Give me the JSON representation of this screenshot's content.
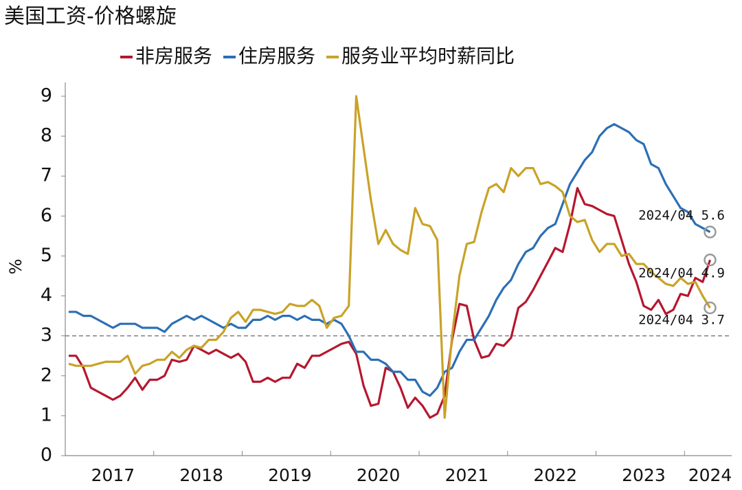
{
  "chart_data": {
    "type": "line",
    "title": "美国工资-价格螺旋",
    "ylabel": "%",
    "categories": [
      null,
      null,
      null,
      null,
      null,
      null,
      "2017",
      null,
      null,
      null,
      null,
      null,
      null,
      null,
      null,
      null,
      null,
      null,
      "2018",
      null,
      null,
      null,
      null,
      null,
      null,
      null,
      null,
      null,
      null,
      null,
      "2019",
      null,
      null,
      null,
      null,
      null,
      null,
      null,
      null,
      null,
      null,
      null,
      "2020",
      null,
      null,
      null,
      null,
      null,
      null,
      null,
      null,
      null,
      null,
      null,
      "2021",
      null,
      null,
      null,
      null,
      null,
      null,
      null,
      null,
      null,
      null,
      null,
      "2022",
      null,
      null,
      null,
      null,
      null,
      null,
      null,
      null,
      null,
      null,
      null,
      "2023",
      null,
      null,
      null,
      null,
      null,
      null,
      null,
      null,
      "2024"
    ],
    "series": [
      {
        "name": "非房服务",
        "color": "#b5172f",
        "values": [
          2.5,
          2.5,
          2.2,
          1.7,
          1.6,
          1.5,
          1.4,
          1.5,
          1.7,
          1.95,
          1.65,
          1.9,
          1.9,
          2.0,
          2.4,
          2.35,
          2.4,
          2.75,
          2.65,
          2.55,
          2.65,
          2.55,
          2.45,
          2.55,
          2.35,
          1.85,
          1.85,
          1.95,
          1.85,
          1.95,
          1.95,
          2.3,
          2.2,
          2.5,
          2.5,
          2.6,
          2.7,
          2.8,
          2.85,
          2.55,
          1.75,
          1.25,
          1.3,
          2.2,
          2.1,
          1.7,
          1.2,
          1.45,
          1.25,
          0.95,
          1.05,
          1.5,
          2.9,
          3.8,
          3.75,
          2.9,
          2.45,
          2.5,
          2.8,
          2.75,
          2.95,
          3.7,
          3.85,
          4.15,
          4.5,
          4.85,
          5.2,
          5.1,
          5.8,
          6.7,
          6.3,
          6.25,
          6.15,
          6.05,
          6.0,
          5.4,
          4.8,
          4.35,
          3.75,
          3.65,
          3.9,
          3.55,
          3.65,
          4.05,
          4.0,
          4.45,
          4.35,
          4.9
        ]
      },
      {
        "name": "住房服务",
        "color": "#2b6fb5",
        "values": [
          3.6,
          3.6,
          3.5,
          3.5,
          3.4,
          3.3,
          3.2,
          3.3,
          3.3,
          3.3,
          3.2,
          3.2,
          3.2,
          3.1,
          3.3,
          3.4,
          3.5,
          3.4,
          3.5,
          3.4,
          3.3,
          3.2,
          3.3,
          3.2,
          3.2,
          3.4,
          3.4,
          3.5,
          3.4,
          3.5,
          3.5,
          3.4,
          3.5,
          3.4,
          3.4,
          3.3,
          3.4,
          3.3,
          3.0,
          2.6,
          2.6,
          2.4,
          2.4,
          2.3,
          2.1,
          2.1,
          1.9,
          1.9,
          1.6,
          1.5,
          1.7,
          2.1,
          2.2,
          2.6,
          2.9,
          2.9,
          3.2,
          3.5,
          3.9,
          4.2,
          4.4,
          4.8,
          5.1,
          5.2,
          5.5,
          5.7,
          5.8,
          6.3,
          6.8,
          7.1,
          7.4,
          7.6,
          8.0,
          8.2,
          8.3,
          8.2,
          8.1,
          7.9,
          7.8,
          7.3,
          7.2,
          6.8,
          6.5,
          6.2,
          6.1,
          5.8,
          5.7,
          5.6
        ]
      },
      {
        "name": "服务业平均时薪同比",
        "color": "#c9a227",
        "values": [
          2.3,
          2.25,
          2.25,
          2.25,
          2.3,
          2.35,
          2.35,
          2.35,
          2.5,
          2.05,
          2.25,
          2.3,
          2.4,
          2.4,
          2.6,
          2.45,
          2.65,
          2.75,
          2.7,
          2.9,
          2.9,
          3.1,
          3.45,
          3.6,
          3.35,
          3.65,
          3.65,
          3.6,
          3.55,
          3.6,
          3.8,
          3.75,
          3.75,
          3.9,
          3.75,
          3.2,
          3.45,
          3.5,
          3.75,
          9.0,
          7.7,
          6.4,
          5.3,
          5.65,
          5.3,
          5.15,
          5.05,
          6.2,
          5.8,
          5.75,
          5.4,
          0.95,
          3.0,
          4.5,
          5.3,
          5.35,
          6.1,
          6.7,
          6.8,
          6.6,
          7.2,
          7.0,
          7.2,
          7.2,
          6.8,
          6.85,
          6.75,
          6.6,
          6.0,
          5.85,
          5.9,
          5.4,
          5.1,
          5.3,
          5.3,
          5.0,
          5.05,
          4.8,
          4.8,
          4.6,
          4.45,
          4.3,
          4.25,
          4.45,
          4.3,
          4.35,
          4.0,
          3.7
        ]
      }
    ],
    "annotations": [
      "2024/04 5.6",
      "2024/04 4.9",
      "2024/04 3.7"
    ],
    "hline": 3,
    "ylim": [
      0,
      9
    ],
    "yticks": [
      0,
      1,
      2,
      3,
      4,
      5,
      6,
      7,
      8,
      9
    ]
  }
}
